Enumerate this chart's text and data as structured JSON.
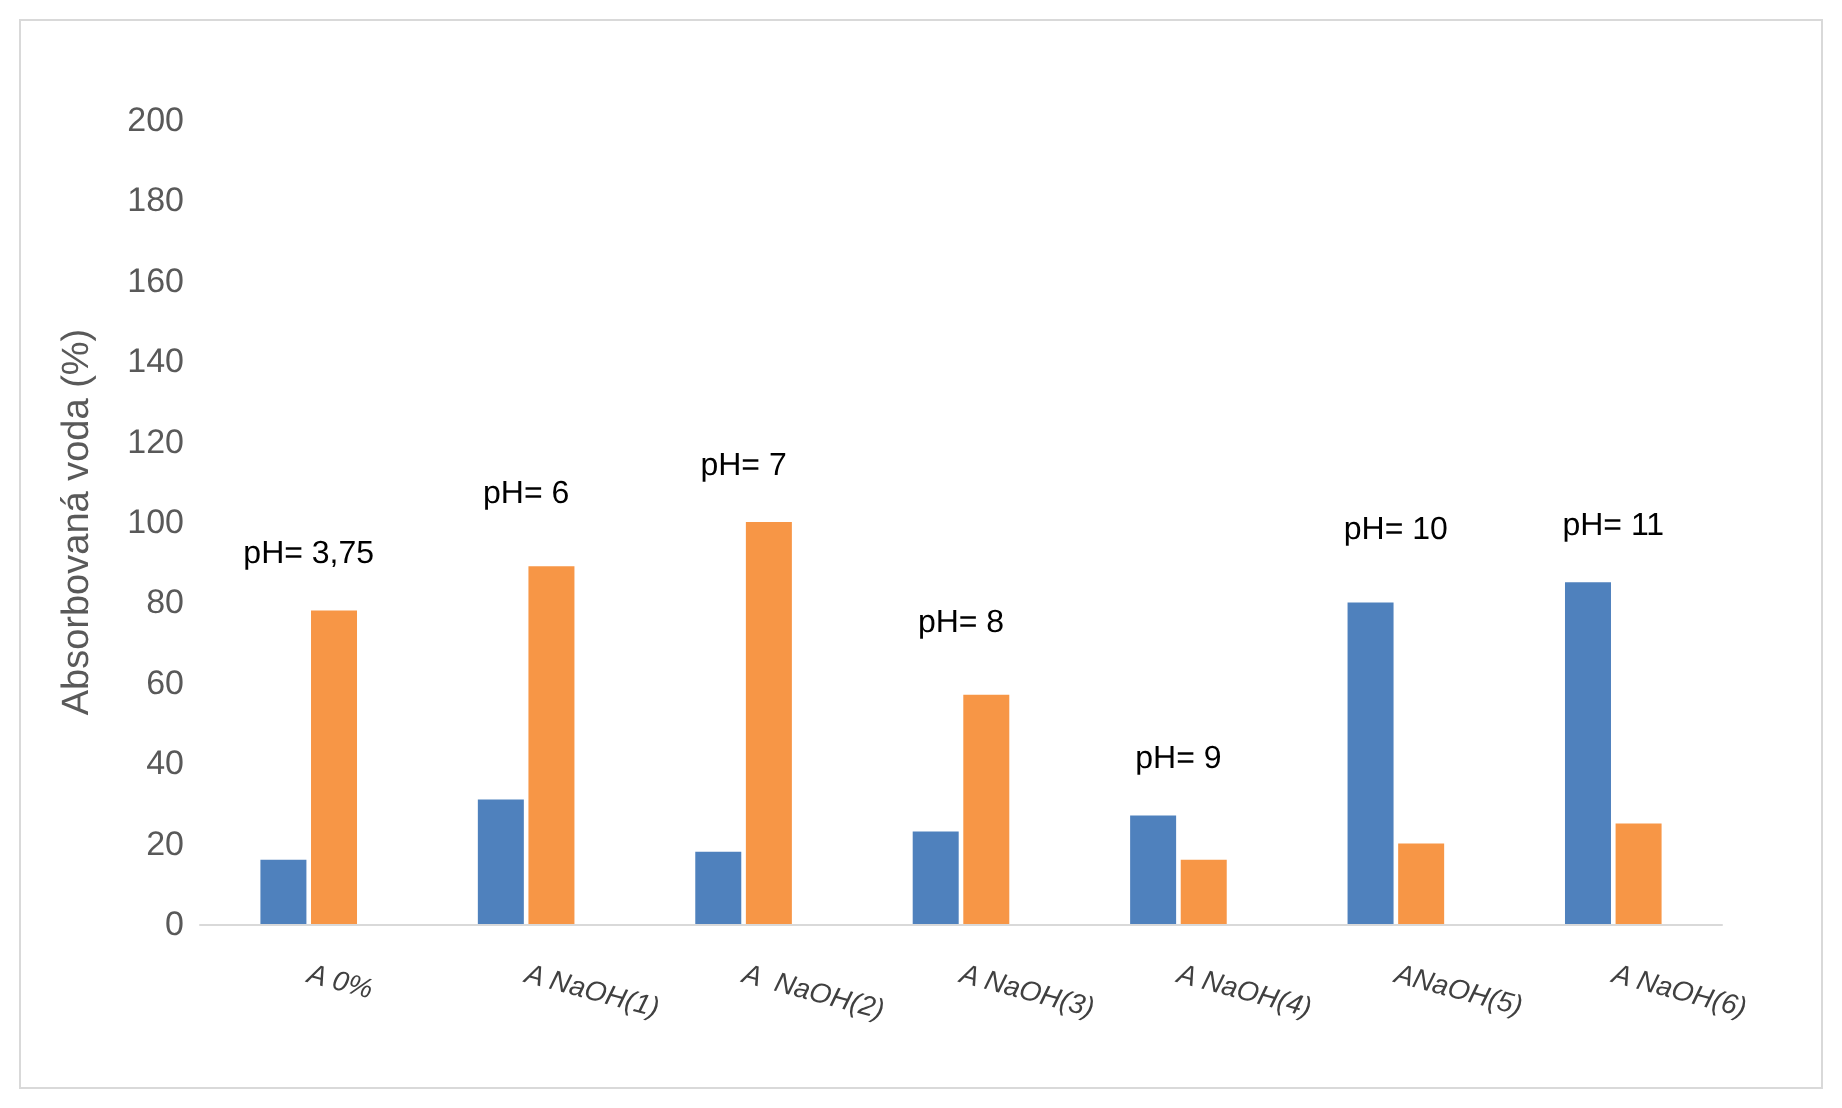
{
  "chart_data": {
    "type": "bar",
    "ylabel": "Absorbovaná voda (%)",
    "categories": [
      "A 0%",
      "A NaOH(1)",
      "A  NaOH(2)",
      "A NaOH(3)",
      "A NaOH(4)",
      "ANaOH(5)",
      "A NaOH(6)"
    ],
    "series": [
      {
        "color": "#4f81bd",
        "values": [
          16,
          31,
          18,
          23,
          27,
          80,
          85
        ]
      },
      {
        "color": "#f79646",
        "values": [
          78,
          89,
          100,
          57,
          16,
          20,
          25
        ]
      }
    ],
    "ylim": [
      0,
      200
    ],
    "yticks": [
      0,
      20,
      40,
      60,
      80,
      100,
      120,
      140,
      160,
      180,
      200
    ],
    "grid": false,
    "annotations": [
      "pH= 3,75",
      "pH= 6",
      "pH= 7",
      "pH= 8",
      "pH= 9",
      "pH= 10",
      "pH= 11"
    ]
  }
}
